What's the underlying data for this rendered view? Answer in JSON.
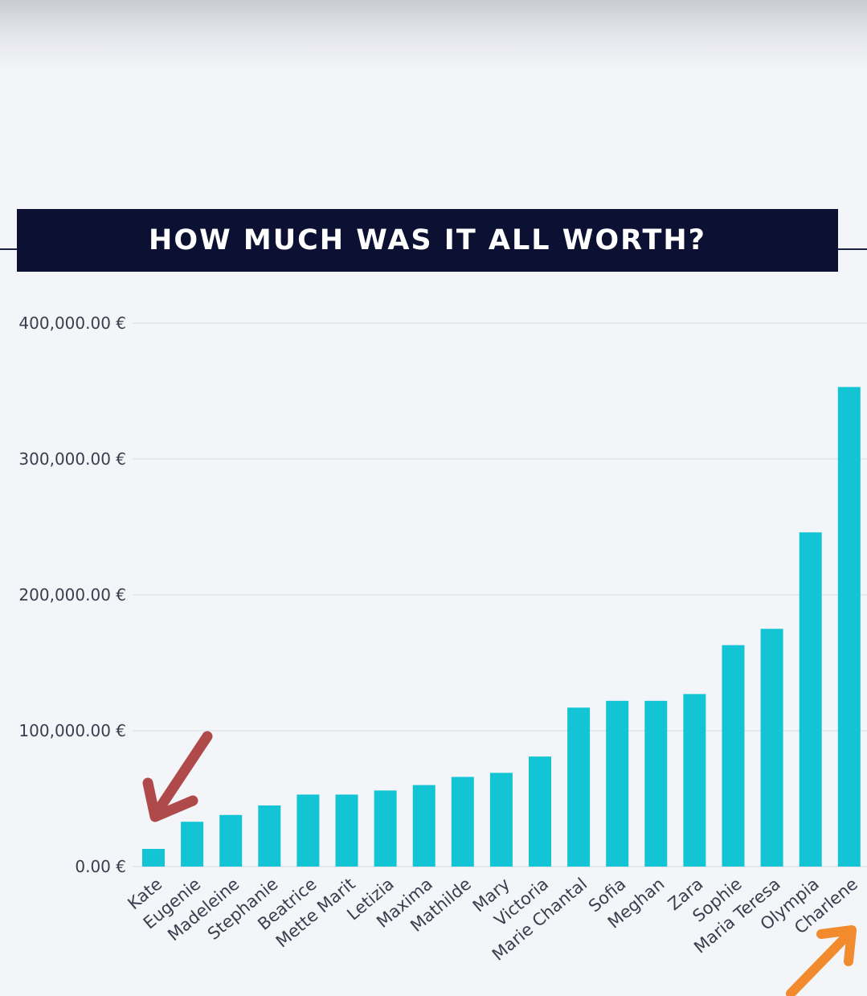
{
  "header": {
    "title": "HOW MUCH WAS IT ALL WORTH?"
  },
  "colors": {
    "banner": "#0c1133",
    "bar": "#13c4d4",
    "arrow_left": "#b04a4a",
    "arrow_right": "#f28a2e"
  },
  "annotations": {
    "left_arrow": "arrow-pointing-to-first-bar",
    "right_arrow": "arrow-pointing-to-last-bar"
  },
  "chart_data": {
    "type": "bar",
    "title": "HOW MUCH WAS IT ALL WORTH?",
    "xlabel": "",
    "ylabel": "",
    "ylim": [
      0,
      400000
    ],
    "grid": true,
    "yticks": [
      {
        "value": 0,
        "label": "0.00 €"
      },
      {
        "value": 100000,
        "label": "100,000.00 €"
      },
      {
        "value": 200000,
        "label": "200,000.00 €"
      },
      {
        "value": 300000,
        "label": "300,000.00 €"
      },
      {
        "value": 400000,
        "label": "400,000.00 €"
      }
    ],
    "categories": [
      "Kate",
      "Eugenie",
      "Madeleine",
      "Stephanie",
      "Beatrice",
      "Mette Marit",
      "Letizia",
      "Maxima",
      "Mathilde",
      "Mary",
      "Victoria",
      "Marie Chantal",
      "Sofia",
      "Meghan",
      "Zara",
      "Sophie",
      "Maria Teresa",
      "Olympia",
      "Charlene"
    ],
    "values": [
      13000,
      33000,
      38000,
      45000,
      53000,
      53000,
      56000,
      60000,
      66000,
      69000,
      81000,
      117000,
      122000,
      122000,
      127000,
      163000,
      175000,
      246000,
      353000
    ]
  }
}
